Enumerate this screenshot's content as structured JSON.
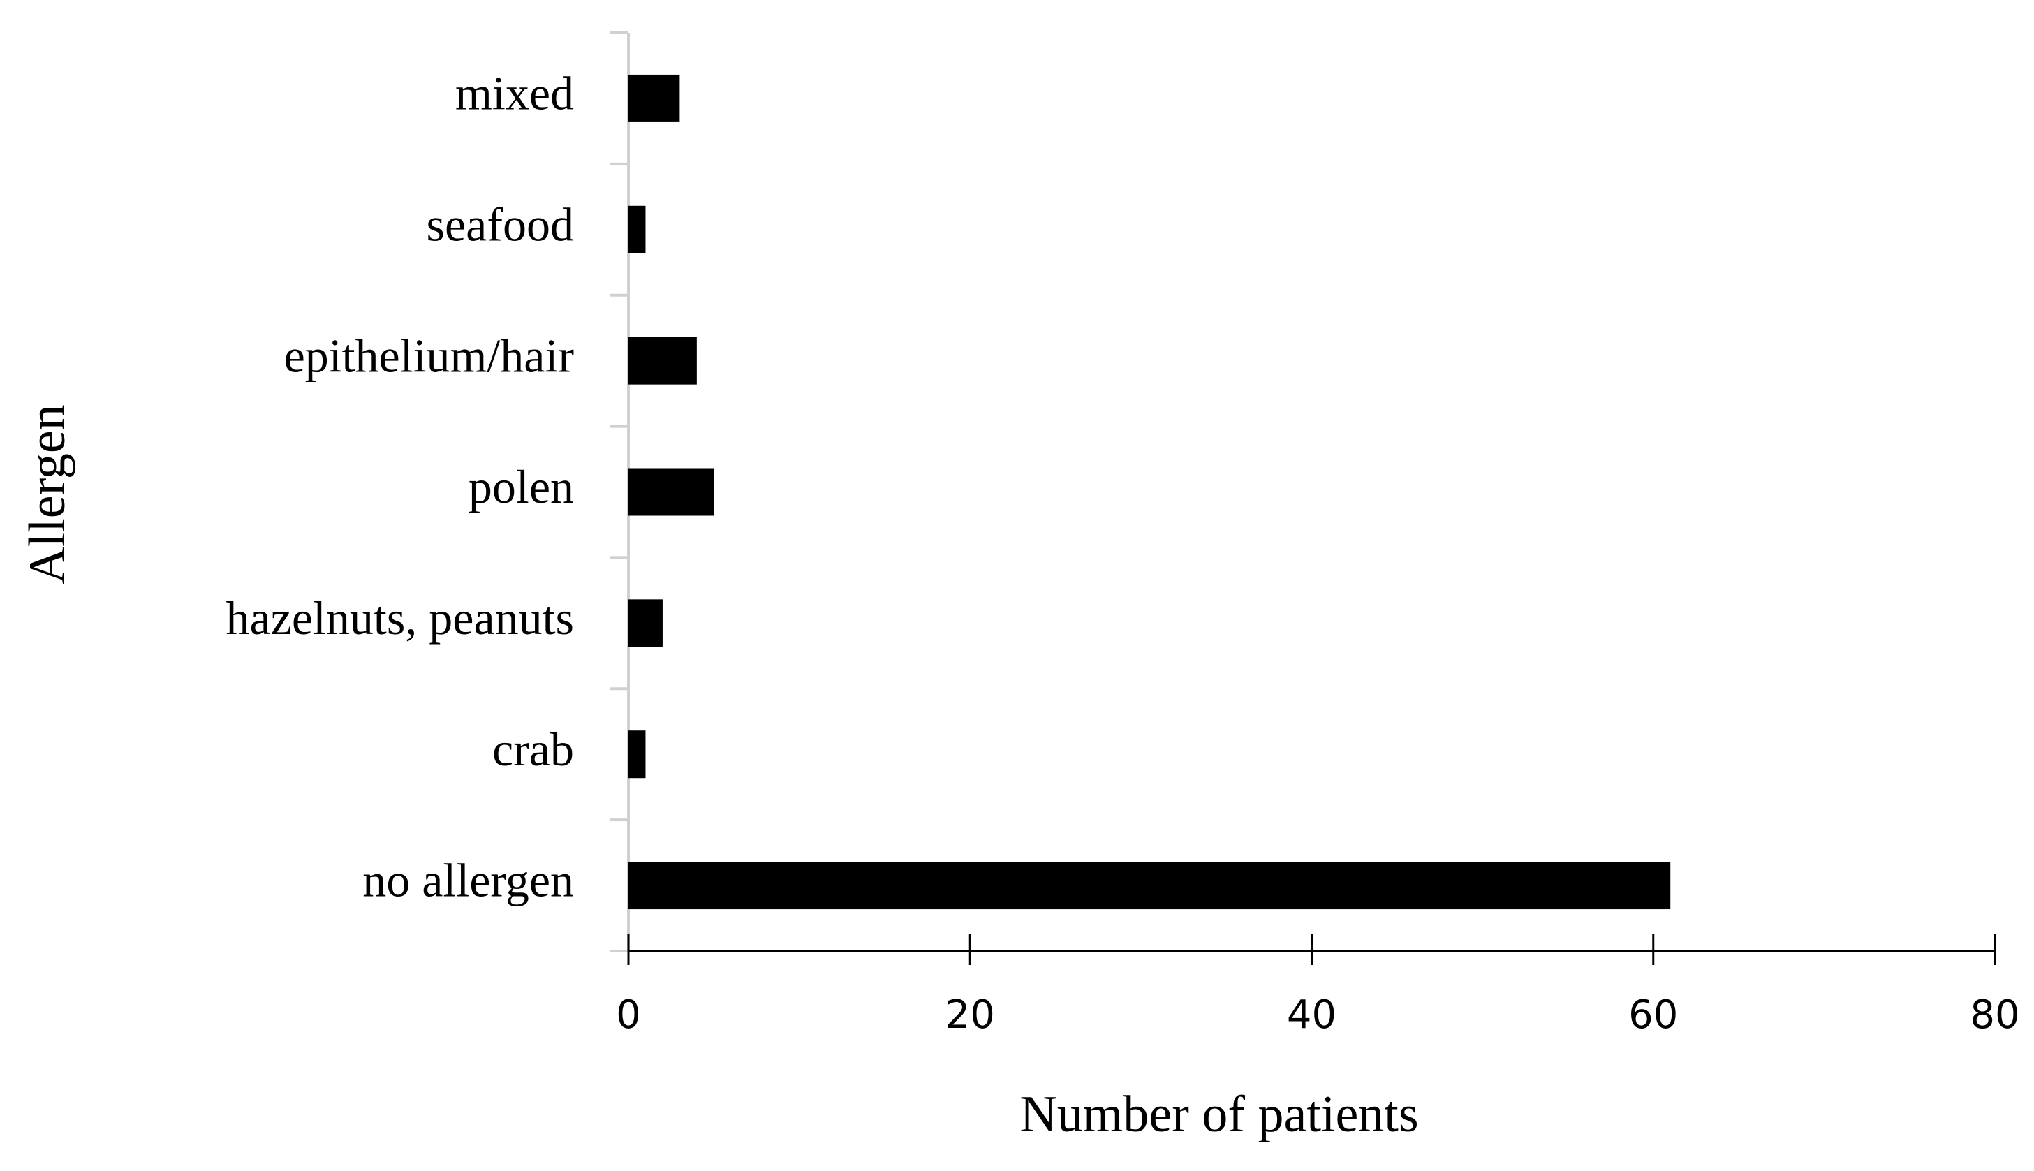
{
  "chart_data": {
    "type": "hbar",
    "x_label": "Number of patients",
    "y_label": "Allergen",
    "categories": [
      "mixed",
      "seafood",
      "epithelium/hair",
      "polen",
      "hazelnuts, peanuts",
      "crab",
      "no allergen"
    ],
    "values": [
      3,
      1,
      4,
      5,
      2,
      1,
      61
    ],
    "color": "#000000",
    "xlim": [
      0,
      80
    ],
    "xticks": [
      0,
      20,
      40,
      60,
      80
    ]
  }
}
